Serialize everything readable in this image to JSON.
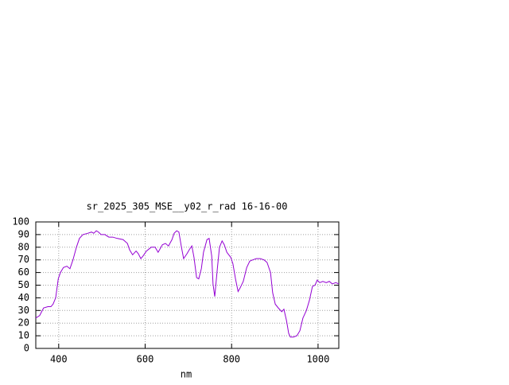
{
  "chart_data": {
    "type": "line",
    "title": "sr_2025_305_MSE__y02_r_rad 16-16-00",
    "x_label": "nm",
    "x": [
      347,
      356,
      365,
      375,
      382,
      387,
      393,
      399,
      404,
      411,
      419,
      426,
      433,
      441,
      448,
      456,
      467,
      476,
      481,
      487,
      492,
      498,
      507,
      516,
      525,
      535,
      549,
      559,
      564,
      571,
      579,
      584,
      590,
      595,
      603,
      614,
      623,
      630,
      640,
      647,
      654,
      662,
      667,
      673,
      678,
      684,
      689,
      697,
      702,
      708,
      713,
      719,
      724,
      730,
      735,
      743,
      748,
      754,
      757,
      761,
      767,
      772,
      778,
      783,
      789,
      798,
      803,
      809,
      815,
      820,
      827,
      835,
      842,
      849,
      857,
      866,
      875,
      882,
      890,
      895,
      901,
      908,
      916,
      921,
      927,
      932,
      936,
      943,
      951,
      958,
      965,
      973,
      980,
      987,
      993,
      998,
      1004,
      1011,
      1019,
      1026,
      1033,
      1041,
      1048
    ],
    "series": [
      {
        "color": "#9400d3",
        "values": [
          24,
          26,
          32,
          33,
          33,
          35,
          40,
          55,
          60,
          64,
          65,
          63,
          70,
          80,
          87,
          90,
          91,
          92,
          91,
          93,
          92,
          90,
          90,
          88,
          88,
          87,
          86,
          83,
          78,
          74,
          77,
          75,
          71,
          73,
          77,
          80,
          80,
          76,
          82,
          83,
          81,
          86,
          91,
          93,
          92,
          80,
          71,
          75,
          78,
          81,
          72,
          56,
          55,
          63,
          76,
          86,
          87,
          73,
          51,
          41,
          63,
          80,
          85,
          82,
          76,
          72,
          67,
          55,
          45,
          48,
          53,
          64,
          69,
          70,
          71,
          71,
          70,
          68,
          60,
          44,
          35,
          32,
          29,
          31,
          22,
          12,
          9,
          9,
          10,
          14,
          24,
          30,
          38,
          49,
          50,
          54,
          52,
          53,
          52,
          53,
          51,
          52,
          51
        ]
      }
    ],
    "xlim": [
      347,
      1048
    ],
    "ylim": [
      0,
      100
    ],
    "xticks": [
      400,
      600,
      800,
      1000
    ],
    "yticks": [
      0,
      10,
      20,
      30,
      40,
      50,
      60,
      70,
      80,
      90,
      100
    ],
    "grid": true
  }
}
